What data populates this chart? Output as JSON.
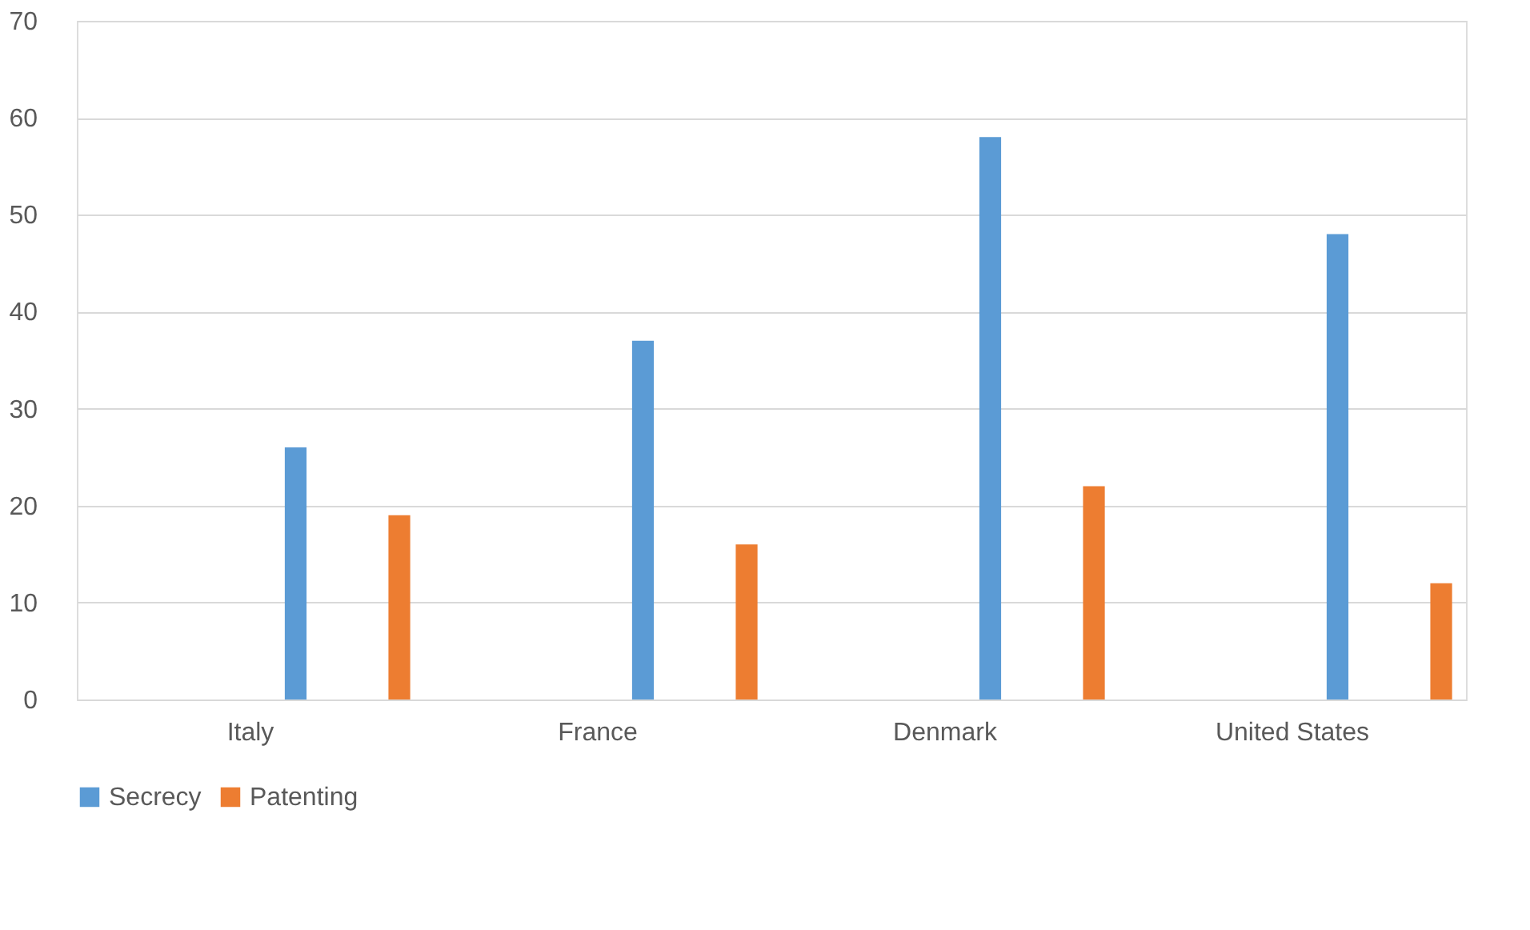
{
  "chart_data": {
    "type": "bar",
    "categories": [
      "Italy",
      "France",
      "Denmark",
      "United States"
    ],
    "series": [
      {
        "name": "Secrecy",
        "color": "#5b9bd5",
        "values": [
          26,
          37,
          58,
          48
        ]
      },
      {
        "name": "Patenting",
        "color": "#ed7d31",
        "values": [
          19,
          16,
          22,
          12
        ]
      }
    ],
    "ylim": [
      0,
      70
    ],
    "yticks": [
      0,
      10,
      20,
      30,
      40,
      50,
      60,
      70
    ],
    "grid": "y",
    "legend": "bottom"
  }
}
